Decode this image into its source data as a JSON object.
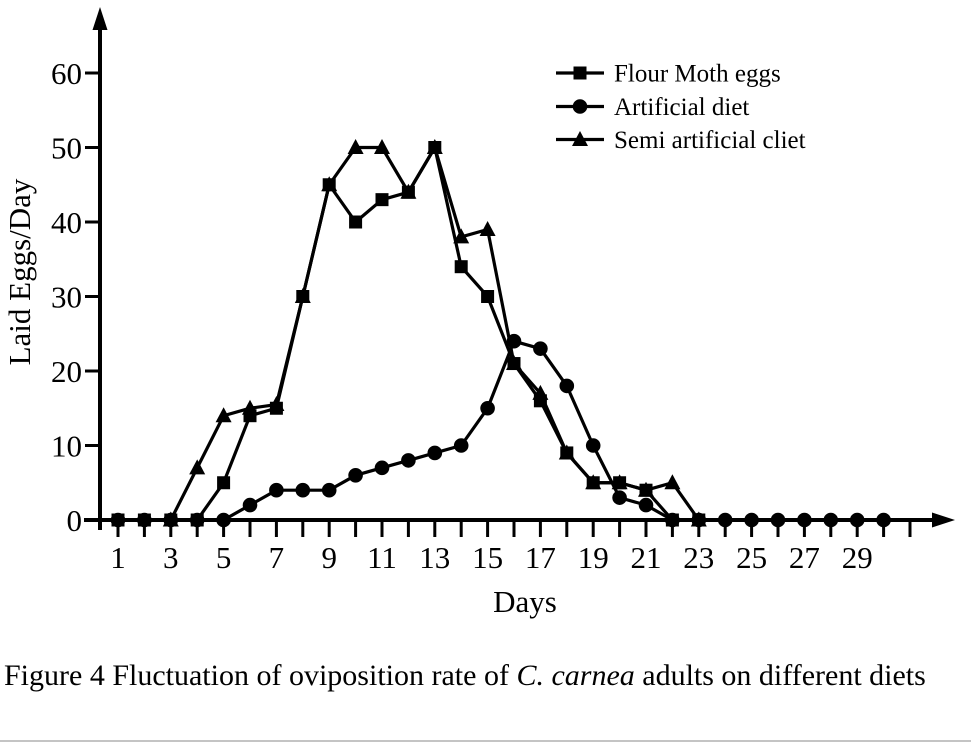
{
  "figure": {
    "caption": {
      "prefix": "Figure 4 Fluctuation of oviposition rate of ",
      "species_italic": "C. carnea",
      "suffix": " adults on different diets"
    }
  },
  "chart_data": {
    "type": "line",
    "title": "",
    "xlabel": "Days",
    "ylabel": "Laid Eggs/Day",
    "line_color": "#000000",
    "grid": false,
    "legend_position": "upper-right-inside",
    "x_axis": {
      "min": 0,
      "max": 31,
      "tick_day_first": 1,
      "tick_day_last": 31,
      "labeled_ticks": [
        1,
        3,
        5,
        7,
        9,
        11,
        13,
        15,
        17,
        19,
        21,
        23,
        25,
        27,
        29
      ]
    },
    "y_axis": {
      "min": 0,
      "max": 67,
      "ticks": [
        0,
        10,
        20,
        30,
        40,
        50,
        60
      ]
    },
    "series": [
      {
        "name": "Flour Moth eggs",
        "marker": "square",
        "x": [
          1,
          2,
          3,
          4,
          5,
          6,
          7,
          8,
          9,
          10,
          11,
          12,
          13,
          14,
          15,
          16,
          17,
          18,
          19,
          20,
          21,
          22,
          23
        ],
        "y": [
          0,
          0,
          0,
          0,
          5,
          14,
          15,
          30,
          45,
          40,
          43,
          44,
          50,
          34,
          30,
          21,
          16,
          9,
          5,
          5,
          4,
          0,
          0
        ]
      },
      {
        "name": "Artificial diet",
        "marker": "circle",
        "x": [
          1,
          2,
          3,
          4,
          5,
          6,
          7,
          8,
          9,
          10,
          11,
          12,
          13,
          14,
          15,
          16,
          17,
          18,
          19,
          20,
          21,
          22,
          23,
          24,
          25,
          26,
          27,
          28,
          29,
          30
        ],
        "y": [
          0,
          0,
          0,
          0,
          0,
          2,
          4,
          4,
          4,
          6,
          7,
          8,
          9,
          10,
          15,
          24,
          23,
          18,
          10,
          3,
          2,
          0,
          0,
          0,
          0,
          0,
          0,
          0,
          0,
          0
        ]
      },
      {
        "name": "Semi artificial cliet",
        "marker": "triangle",
        "x": [
          3,
          4,
          5,
          6,
          7,
          8,
          9,
          10,
          11,
          12,
          13,
          14,
          15,
          16,
          17,
          18,
          19,
          20,
          21,
          22,
          23
        ],
        "y": [
          0,
          7,
          14,
          15,
          15.5,
          30,
          45,
          50,
          50,
          44,
          50,
          38,
          39,
          21,
          17,
          9,
          5,
          5,
          4,
          5,
          0
        ]
      }
    ]
  }
}
